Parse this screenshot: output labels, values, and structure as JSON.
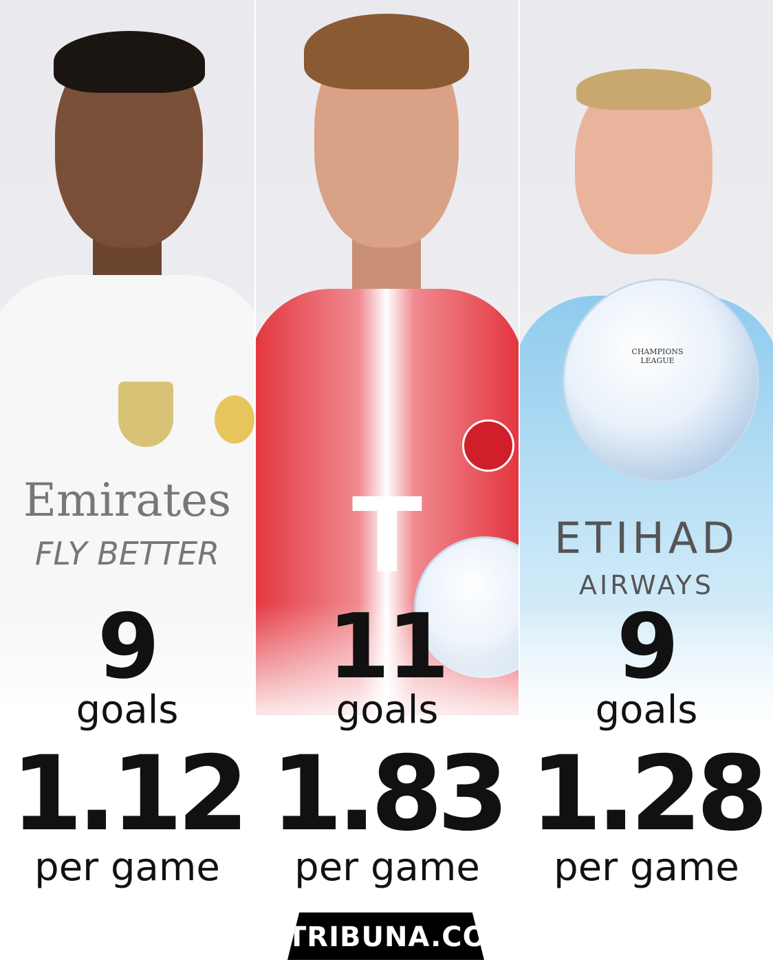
{
  "players": [
    {
      "goals": "9",
      "goals_label": "goals",
      "per_game": "1.12",
      "per_game_label": "per game",
      "sponsor_line1": "Emirates",
      "sponsor_line2": "FLY BETTER",
      "kit_color": "#f7f7f7"
    },
    {
      "goals": "11",
      "goals_label": "goals",
      "per_game": "1.83",
      "per_game_label": "per game",
      "sponsor_line1": "T",
      "kit_color": "#e3323b"
    },
    {
      "goals": "9",
      "goals_label": "goals",
      "per_game": "1.28",
      "per_game_label": "per game",
      "sponsor_line1": "ETIHAD",
      "sponsor_line2": "AIRWAYS",
      "ball_text": "CHAMPIONS LEAGUE",
      "kit_color": "#9fd3f0"
    }
  ],
  "footer": {
    "brand": "TRIBUNA.COM"
  }
}
